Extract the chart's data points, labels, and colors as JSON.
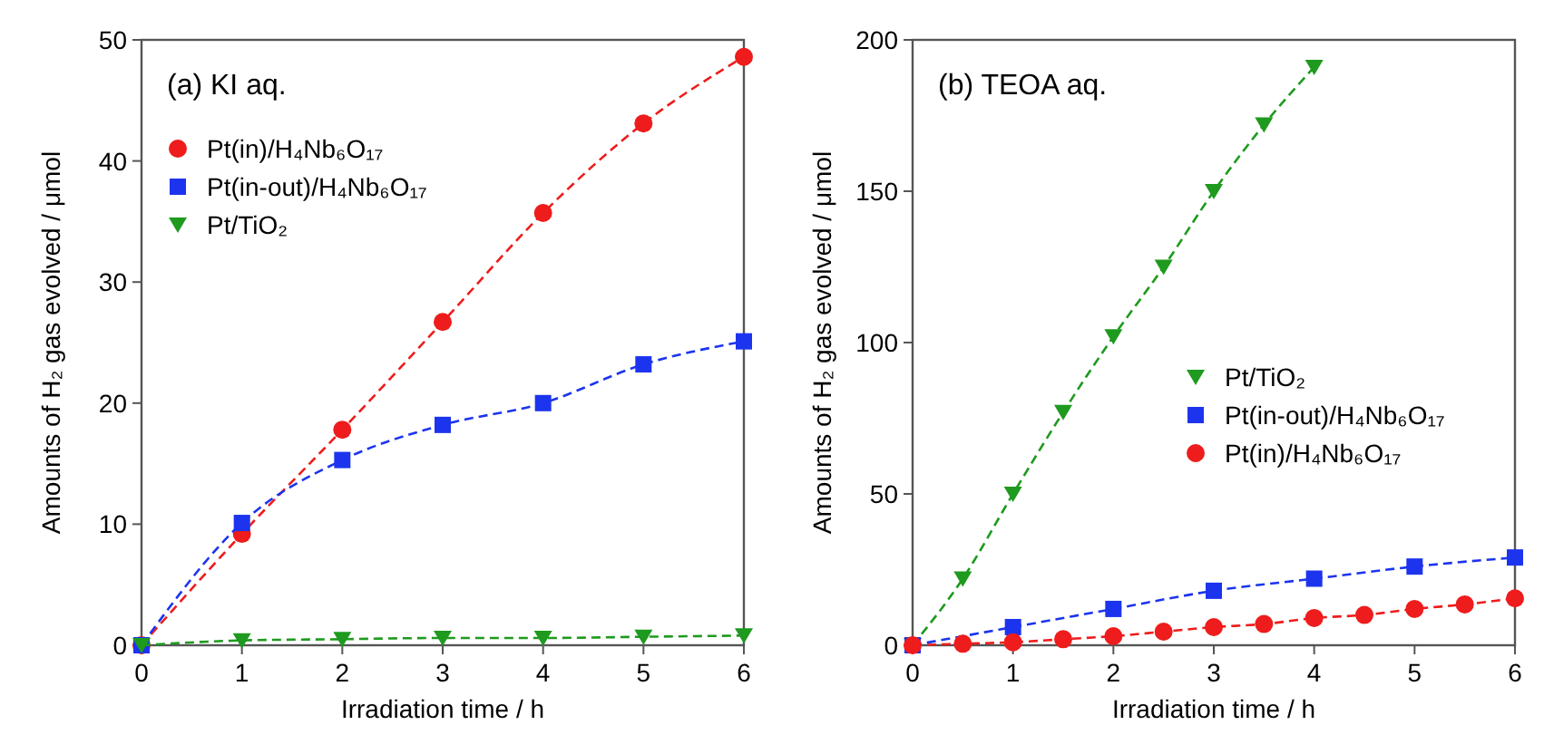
{
  "chart_data": [
    {
      "type": "line",
      "annotations": [
        "(a) KI aq."
      ],
      "xlabel": "Irradiation time / h",
      "ylabel": "Amounts of H₂ gas evolved / μmol",
      "x": [
        0,
        1,
        2,
        3,
        4,
        5,
        6
      ],
      "xlim": [
        0,
        6
      ],
      "xticks": [
        0,
        1,
        2,
        3,
        4,
        5,
        6
      ],
      "ylim": [
        0,
        50
      ],
      "yticks": [
        0,
        10,
        20,
        30,
        40,
        50
      ],
      "legend": "top left",
      "line_style": "dashed",
      "series": [
        {
          "name": "Pt(in)/H₄Nb₆O₁₇",
          "color": "#ee1c1c",
          "marker": "circle",
          "values": [
            0,
            9.2,
            17.8,
            26.7,
            35.7,
            43.1,
            48.6
          ]
        },
        {
          "name": "Pt(in-out)/H₄Nb₆O₁₇",
          "color": "#1c34ee",
          "marker": "square",
          "values": [
            0,
            10.1,
            15.3,
            18.2,
            20,
            23.2,
            25.1
          ]
        },
        {
          "name": "Pt/TiO₂",
          "color": "#1e9a1e",
          "marker": "triangle",
          "values": [
            0,
            0.4,
            0.5,
            0.6,
            0.6,
            0.7,
            0.8
          ]
        }
      ]
    },
    {
      "type": "line",
      "annotations": [
        "(b) TEOA aq."
      ],
      "xlabel": "Irradiation time / h",
      "ylabel": "Amounts of H₂ gas evolved / μmol",
      "xlim": [
        0,
        6
      ],
      "xticks": [
        0,
        1,
        2,
        3,
        4,
        5,
        6
      ],
      "ylim": [
        0,
        200
      ],
      "yticks": [
        0,
        50,
        100,
        150,
        200
      ],
      "legend": "right",
      "line_style": "dashed",
      "series": [
        {
          "name": "Pt/TiO₂",
          "color": "#1e9a1e",
          "marker": "triangle",
          "x": [
            0,
            0.5,
            1,
            1.5,
            2,
            2.5,
            3,
            3.5,
            4
          ],
          "values": [
            0,
            22,
            50,
            77,
            102,
            125,
            150,
            172,
            191
          ]
        },
        {
          "name": "Pt(in-out)/H₄Nb₆O₁₇",
          "color": "#1c34ee",
          "marker": "square",
          "x": [
            0,
            1,
            2,
            3,
            4,
            5,
            6
          ],
          "values": [
            0,
            6,
            12,
            18,
            22,
            26,
            29
          ]
        },
        {
          "name": "Pt(in)/H₄Nb₆O₁₇",
          "color": "#ee1c1c",
          "marker": "circle",
          "x": [
            0,
            0.5,
            1,
            1.5,
            2,
            2.5,
            3,
            3.5,
            4,
            4.5,
            5,
            5.5,
            6
          ],
          "values": [
            0,
            0.5,
            1,
            2,
            3,
            4.5,
            6,
            7,
            9,
            10,
            12,
            13.5,
            15.5
          ]
        }
      ]
    }
  ]
}
